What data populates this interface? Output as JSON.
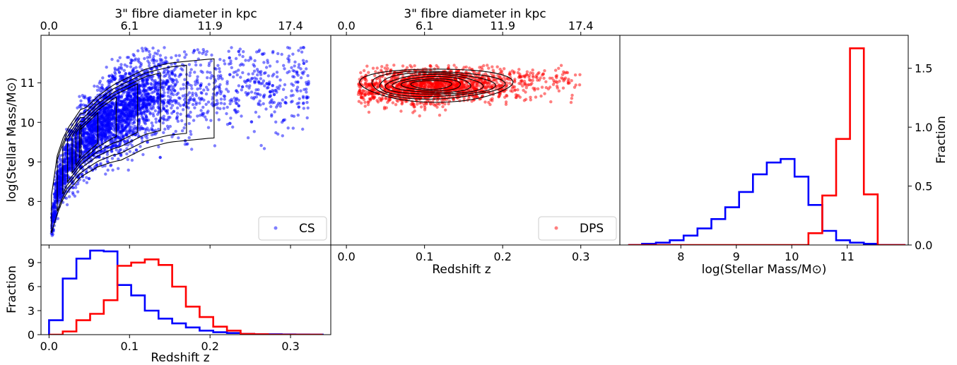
{
  "colors": {
    "cs": "#0000ff",
    "dps": "#ff0000",
    "contour": "#000000"
  },
  "chart_data": [
    {
      "type": "scatter",
      "panel": "scatter-cs",
      "title": "",
      "xlabel": "",
      "ylabel": "log(Stellar Mass/M⊙)",
      "xlim": [
        -0.01,
        0.35
      ],
      "ylim": [
        6.9,
        12.2
      ],
      "x_ticks": [
        0.0,
        0.1,
        0.2,
        0.3
      ],
      "y_ticks": [
        8,
        9,
        10,
        11
      ],
      "top_axis_label": "3\" fibre diameter in kpc",
      "top_tick_labels": [
        "0.0",
        "6.1",
        "11.9",
        "17.4"
      ],
      "top_tick_positions": [
        0.0,
        0.1,
        0.2,
        0.3
      ],
      "legend": "CS",
      "legend_placement": "lower-right",
      "series": [
        {
          "name": "CS",
          "color": "#0000ff"
        }
      ],
      "density_ridge": [
        [
          0.003,
          7.3
        ],
        [
          0.01,
          8.3
        ],
        [
          0.02,
          8.9
        ],
        [
          0.04,
          9.5
        ],
        [
          0.06,
          9.9
        ],
        [
          0.08,
          10.2
        ],
        [
          0.1,
          10.4
        ],
        [
          0.12,
          10.6
        ],
        [
          0.15,
          10.75
        ],
        [
          0.2,
          10.85
        ],
        [
          0.25,
          10.9
        ],
        [
          0.32,
          10.95
        ]
      ],
      "density_peak": [
        0.07,
        10.0
      ]
    },
    {
      "type": "scatter",
      "panel": "scatter-dps",
      "title": "",
      "xlabel": "Redshift z",
      "ylabel": "",
      "xlim": [
        -0.02,
        0.35
      ],
      "ylim": [
        6.9,
        12.2
      ],
      "x_ticks": [
        0.0,
        0.1,
        0.2,
        0.3
      ],
      "top_axis_label": "3\" fibre diameter in kpc",
      "top_tick_labels": [
        "0.0",
        "6.1",
        "11.9",
        "17.4"
      ],
      "top_tick_positions": [
        0.0,
        0.1,
        0.2,
        0.3
      ],
      "legend": "DPS",
      "legend_placement": "lower-right",
      "series": [
        {
          "name": "DPS",
          "color": "#ff0000"
        }
      ],
      "density_peak": [
        0.11,
        10.95
      ]
    },
    {
      "type": "histogram",
      "panel": "hist-redshift",
      "title": "",
      "xlabel": "Redshift z",
      "ylabel": "Fraction",
      "xlim": [
        -0.01,
        0.35
      ],
      "ylim": [
        0,
        11.2
      ],
      "x_ticks": [
        0.0,
        0.1,
        0.2,
        0.3
      ],
      "y_ticks": [
        0,
        3,
        6,
        9
      ],
      "bin_edges": [
        0.0,
        0.017,
        0.034,
        0.051,
        0.068,
        0.085,
        0.102,
        0.119,
        0.136,
        0.153,
        0.17,
        0.187,
        0.204,
        0.221,
        0.238,
        0.255,
        0.272,
        0.289,
        0.306,
        0.323,
        0.34
      ],
      "series": [
        {
          "name": "CS",
          "color": "#0000ff",
          "values": [
            1.8,
            7.0,
            9.5,
            10.5,
            10.4,
            6.2,
            4.9,
            3.0,
            2.0,
            1.4,
            0.9,
            0.5,
            0.3,
            0.2,
            0.1,
            0.05,
            0.05,
            0.03,
            0.02,
            0.01
          ]
        },
        {
          "name": "DPS",
          "color": "#ff0000",
          "values": [
            0.0,
            0.4,
            1.8,
            2.6,
            4.3,
            8.6,
            9.0,
            9.4,
            8.7,
            6.0,
            3.5,
            2.2,
            1.0,
            0.5,
            0.1,
            0.05,
            0.0,
            0.0,
            0.0,
            0.0
          ]
        }
      ]
    },
    {
      "type": "histogram",
      "panel": "hist-mass",
      "title": "",
      "xlabel": "log(Stellar Mass/M⊙)",
      "ylabel": "Fraction",
      "ylabel_side": "right",
      "xlim": [
        6.9,
        12.1
      ],
      "ylim": [
        0,
        1.78
      ],
      "x_ticks": [
        8,
        9,
        10,
        11
      ],
      "y_ticks": [
        0.0,
        0.5,
        1.0,
        1.5
      ],
      "bin_edges": [
        7.05,
        7.3,
        7.55,
        7.8,
        8.05,
        8.3,
        8.55,
        8.8,
        9.05,
        9.3,
        9.55,
        9.8,
        10.05,
        10.3,
        10.55,
        10.8,
        11.05,
        11.3,
        11.55,
        11.8,
        12.05
      ],
      "series": [
        {
          "name": "CS",
          "color": "#0000ff",
          "values": [
            0.0,
            0.01,
            0.02,
            0.04,
            0.08,
            0.14,
            0.22,
            0.32,
            0.45,
            0.6,
            0.7,
            0.73,
            0.58,
            0.34,
            0.12,
            0.04,
            0.02,
            0.01,
            0.0,
            0.0
          ]
        },
        {
          "name": "DPS",
          "color": "#ff0000",
          "values": [
            0.0,
            0.0,
            0.0,
            0.0,
            0.0,
            0.0,
            0.0,
            0.0,
            0.0,
            0.0,
            0.0,
            0.0,
            0.0,
            0.1,
            0.42,
            0.9,
            1.67,
            0.43,
            0.0,
            0.0
          ]
        }
      ]
    }
  ]
}
